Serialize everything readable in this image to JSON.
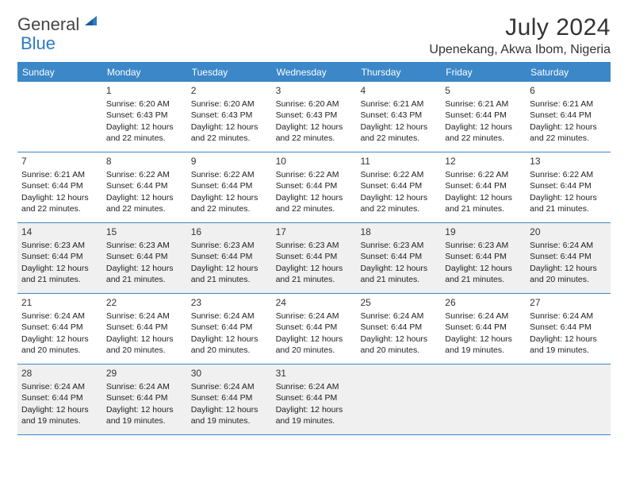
{
  "logo": {
    "word1": "General",
    "word2": "Blue"
  },
  "title": "July 2024",
  "location": "Upenekang, Akwa Ibom, Nigeria",
  "colors": {
    "brand": "#3b87c8",
    "alt_row_bg": "#f0f0f0",
    "text": "#222222",
    "header_text": "#ffffff"
  },
  "day_headers": [
    "Sunday",
    "Monday",
    "Tuesday",
    "Wednesday",
    "Thursday",
    "Friday",
    "Saturday"
  ],
  "weeks": [
    [
      {
        "num": "",
        "lines": []
      },
      {
        "num": "1",
        "lines": [
          "Sunrise: 6:20 AM",
          "Sunset: 6:43 PM",
          "Daylight: 12 hours",
          "and 22 minutes."
        ]
      },
      {
        "num": "2",
        "lines": [
          "Sunrise: 6:20 AM",
          "Sunset: 6:43 PM",
          "Daylight: 12 hours",
          "and 22 minutes."
        ]
      },
      {
        "num": "3",
        "lines": [
          "Sunrise: 6:20 AM",
          "Sunset: 6:43 PM",
          "Daylight: 12 hours",
          "and 22 minutes."
        ]
      },
      {
        "num": "4",
        "lines": [
          "Sunrise: 6:21 AM",
          "Sunset: 6:43 PM",
          "Daylight: 12 hours",
          "and 22 minutes."
        ]
      },
      {
        "num": "5",
        "lines": [
          "Sunrise: 6:21 AM",
          "Sunset: 6:44 PM",
          "Daylight: 12 hours",
          "and 22 minutes."
        ]
      },
      {
        "num": "6",
        "lines": [
          "Sunrise: 6:21 AM",
          "Sunset: 6:44 PM",
          "Daylight: 12 hours",
          "and 22 minutes."
        ]
      }
    ],
    [
      {
        "num": "7",
        "lines": [
          "Sunrise: 6:21 AM",
          "Sunset: 6:44 PM",
          "Daylight: 12 hours",
          "and 22 minutes."
        ]
      },
      {
        "num": "8",
        "lines": [
          "Sunrise: 6:22 AM",
          "Sunset: 6:44 PM",
          "Daylight: 12 hours",
          "and 22 minutes."
        ]
      },
      {
        "num": "9",
        "lines": [
          "Sunrise: 6:22 AM",
          "Sunset: 6:44 PM",
          "Daylight: 12 hours",
          "and 22 minutes."
        ]
      },
      {
        "num": "10",
        "lines": [
          "Sunrise: 6:22 AM",
          "Sunset: 6:44 PM",
          "Daylight: 12 hours",
          "and 22 minutes."
        ]
      },
      {
        "num": "11",
        "lines": [
          "Sunrise: 6:22 AM",
          "Sunset: 6:44 PM",
          "Daylight: 12 hours",
          "and 22 minutes."
        ]
      },
      {
        "num": "12",
        "lines": [
          "Sunrise: 6:22 AM",
          "Sunset: 6:44 PM",
          "Daylight: 12 hours",
          "and 21 minutes."
        ]
      },
      {
        "num": "13",
        "lines": [
          "Sunrise: 6:22 AM",
          "Sunset: 6:44 PM",
          "Daylight: 12 hours",
          "and 21 minutes."
        ]
      }
    ],
    [
      {
        "num": "14",
        "lines": [
          "Sunrise: 6:23 AM",
          "Sunset: 6:44 PM",
          "Daylight: 12 hours",
          "and 21 minutes."
        ]
      },
      {
        "num": "15",
        "lines": [
          "Sunrise: 6:23 AM",
          "Sunset: 6:44 PM",
          "Daylight: 12 hours",
          "and 21 minutes."
        ]
      },
      {
        "num": "16",
        "lines": [
          "Sunrise: 6:23 AM",
          "Sunset: 6:44 PM",
          "Daylight: 12 hours",
          "and 21 minutes."
        ]
      },
      {
        "num": "17",
        "lines": [
          "Sunrise: 6:23 AM",
          "Sunset: 6:44 PM",
          "Daylight: 12 hours",
          "and 21 minutes."
        ]
      },
      {
        "num": "18",
        "lines": [
          "Sunrise: 6:23 AM",
          "Sunset: 6:44 PM",
          "Daylight: 12 hours",
          "and 21 minutes."
        ]
      },
      {
        "num": "19",
        "lines": [
          "Sunrise: 6:23 AM",
          "Sunset: 6:44 PM",
          "Daylight: 12 hours",
          "and 21 minutes."
        ]
      },
      {
        "num": "20",
        "lines": [
          "Sunrise: 6:24 AM",
          "Sunset: 6:44 PM",
          "Daylight: 12 hours",
          "and 20 minutes."
        ]
      }
    ],
    [
      {
        "num": "21",
        "lines": [
          "Sunrise: 6:24 AM",
          "Sunset: 6:44 PM",
          "Daylight: 12 hours",
          "and 20 minutes."
        ]
      },
      {
        "num": "22",
        "lines": [
          "Sunrise: 6:24 AM",
          "Sunset: 6:44 PM",
          "Daylight: 12 hours",
          "and 20 minutes."
        ]
      },
      {
        "num": "23",
        "lines": [
          "Sunrise: 6:24 AM",
          "Sunset: 6:44 PM",
          "Daylight: 12 hours",
          "and 20 minutes."
        ]
      },
      {
        "num": "24",
        "lines": [
          "Sunrise: 6:24 AM",
          "Sunset: 6:44 PM",
          "Daylight: 12 hours",
          "and 20 minutes."
        ]
      },
      {
        "num": "25",
        "lines": [
          "Sunrise: 6:24 AM",
          "Sunset: 6:44 PM",
          "Daylight: 12 hours",
          "and 20 minutes."
        ]
      },
      {
        "num": "26",
        "lines": [
          "Sunrise: 6:24 AM",
          "Sunset: 6:44 PM",
          "Daylight: 12 hours",
          "and 19 minutes."
        ]
      },
      {
        "num": "27",
        "lines": [
          "Sunrise: 6:24 AM",
          "Sunset: 6:44 PM",
          "Daylight: 12 hours",
          "and 19 minutes."
        ]
      }
    ],
    [
      {
        "num": "28",
        "lines": [
          "Sunrise: 6:24 AM",
          "Sunset: 6:44 PM",
          "Daylight: 12 hours",
          "and 19 minutes."
        ]
      },
      {
        "num": "29",
        "lines": [
          "Sunrise: 6:24 AM",
          "Sunset: 6:44 PM",
          "Daylight: 12 hours",
          "and 19 minutes."
        ]
      },
      {
        "num": "30",
        "lines": [
          "Sunrise: 6:24 AM",
          "Sunset: 6:44 PM",
          "Daylight: 12 hours",
          "and 19 minutes."
        ]
      },
      {
        "num": "31",
        "lines": [
          "Sunrise: 6:24 AM",
          "Sunset: 6:44 PM",
          "Daylight: 12 hours",
          "and 19 minutes."
        ]
      },
      {
        "num": "",
        "lines": []
      },
      {
        "num": "",
        "lines": []
      },
      {
        "num": "",
        "lines": []
      }
    ]
  ],
  "alt_weeks": [
    false,
    false,
    true,
    false,
    true
  ]
}
